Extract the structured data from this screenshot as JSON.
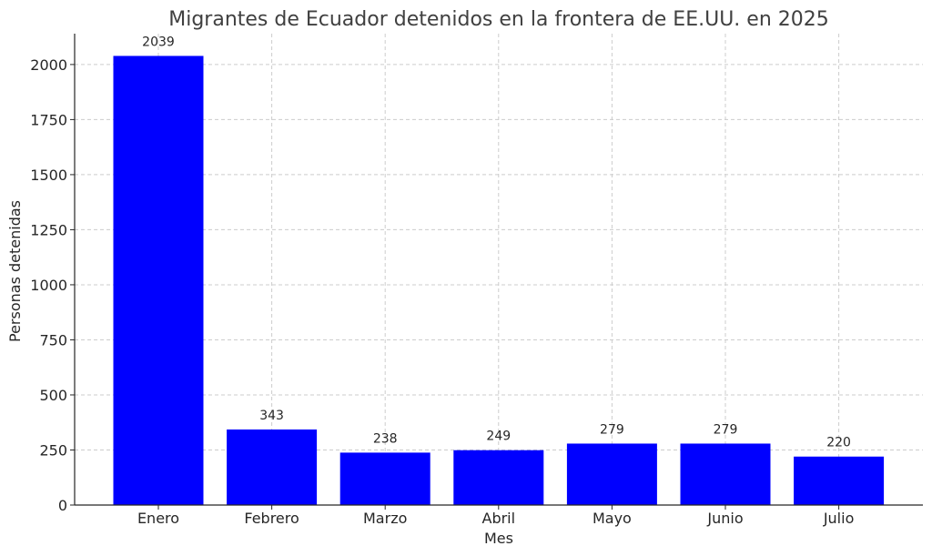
{
  "chart_data": {
    "type": "bar",
    "title": "Migrantes de Ecuador detenidos en la frontera de EE.UU. en 2025",
    "xlabel": "Mes",
    "ylabel": "Personas detenidas",
    "categories": [
      "Enero",
      "Febrero",
      "Marzo",
      "Abril",
      "Mayo",
      "Junio",
      "Julio"
    ],
    "values": [
      2039,
      343,
      238,
      249,
      279,
      279,
      220
    ],
    "ylim": [
      0,
      2140
    ],
    "yticks": [
      0,
      250,
      500,
      750,
      1000,
      1250,
      1500,
      1750,
      2000
    ],
    "grid": true,
    "bar_color": "#0000ff"
  }
}
